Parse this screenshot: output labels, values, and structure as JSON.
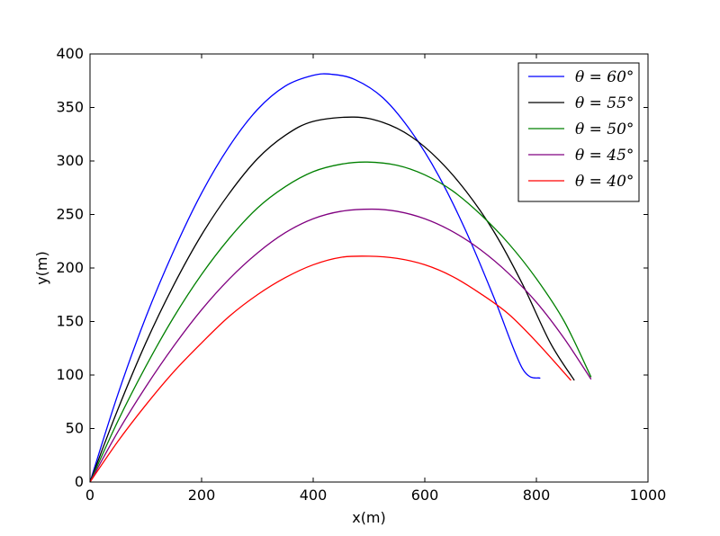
{
  "chart_data": {
    "type": "line",
    "title": "",
    "xlabel": "x(m)",
    "ylabel": "y(m)",
    "xlim": [
      0,
      1000
    ],
    "ylim": [
      0,
      400
    ],
    "xticks": [
      "0",
      "200",
      "400",
      "600",
      "800",
      "1000"
    ],
    "yticks": [
      "0",
      "50",
      "100",
      "150",
      "200",
      "250",
      "300",
      "350",
      "400"
    ],
    "grid": false,
    "legend_position": "top-right",
    "series": [
      {
        "name": "θ = 60°",
        "color": "#0000ff",
        "x": [
          0,
          50,
          100,
          150,
          200,
          250,
          300,
          350,
          400,
          433,
          475,
          525,
          575,
          625,
          675,
          725,
          775,
          807
        ],
        "y": [
          0,
          82,
          154,
          216,
          270,
          314,
          348,
          370,
          380,
          381,
          376,
          359,
          328,
          286,
          233,
          171,
          106,
          97
        ]
      },
      {
        "name": "θ = 55°",
        "color": "#000000",
        "x": [
          0,
          50,
          100,
          150,
          200,
          250,
          300,
          350,
          400,
          473,
          525,
          575,
          625,
          675,
          725,
          775,
          825,
          868
        ],
        "y": [
          0,
          68,
          130,
          184,
          231,
          270,
          302,
          324,
          337,
          341,
          336,
          323,
          301,
          271,
          233,
          185,
          130,
          95
        ]
      },
      {
        "name": "θ = 50°",
        "color": "#008000",
        "x": [
          0,
          50,
          100,
          150,
          200,
          250,
          300,
          350,
          400,
          450,
          497,
          550,
          600,
          650,
          700,
          750,
          800,
          850,
          898
        ],
        "y": [
          0,
          57,
          108,
          154,
          194,
          228,
          256,
          276,
          290,
          297,
          299,
          296,
          287,
          272,
          250,
          223,
          190,
          150,
          98
        ]
      },
      {
        "name": "θ = 45°",
        "color": "#800080",
        "x": [
          0,
          50,
          100,
          150,
          200,
          250,
          300,
          350,
          400,
          450,
          505,
          550,
          600,
          650,
          700,
          750,
          800,
          850,
          898
        ],
        "y": [
          0,
          47,
          89,
          127,
          161,
          190,
          214,
          233,
          246,
          253,
          255,
          253,
          246,
          234,
          217,
          195,
          168,
          134,
          96
        ]
      },
      {
        "name": "θ = 40°",
        "color": "#ff0000",
        "x": [
          0,
          50,
          100,
          150,
          200,
          250,
          300,
          350,
          400,
          450,
          500,
          550,
          600,
          650,
          700,
          750,
          800,
          862
        ],
        "y": [
          0,
          38,
          72,
          103,
          130,
          155,
          175,
          191,
          203,
          210,
          211,
          209,
          203,
          192,
          176,
          157,
          131,
          95
        ]
      }
    ]
  }
}
